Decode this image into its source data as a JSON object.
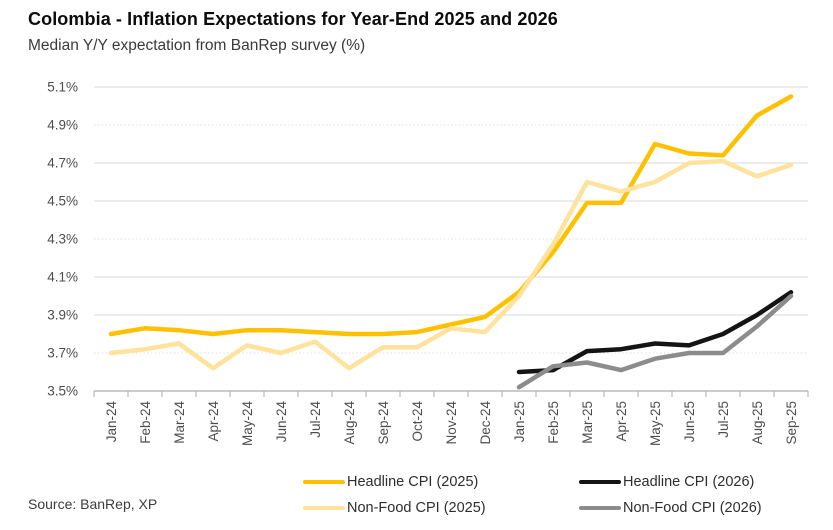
{
  "header": {
    "title": "Colombia - Inflation Expectations for Year-End 2025 and 2026",
    "subtitle": "Median Y/Y expectation from BanRep survey (%)"
  },
  "source": "Source: BanRep, XP",
  "chart_data": {
    "type": "line",
    "title": "Colombia - Inflation Expectations for Year-End 2025 and 2026",
    "subtitle": "Median Y/Y expectation from BanRep survey (%)",
    "x": [
      "Jan-24",
      "Feb-24",
      "Mar-24",
      "Apr-24",
      "May-24",
      "Jun-24",
      "Jul-24",
      "Aug-24",
      "Sep-24",
      "Oct-24",
      "Nov-24",
      "Dec-24",
      "Jan-25",
      "Feb-25",
      "Mar-25",
      "Apr-25",
      "May-25",
      "Jun-25",
      "Jul-25",
      "Aug-25",
      "Sep-25"
    ],
    "series": [
      {
        "name": "Headline CPI (2025)",
        "color": "#FFC000",
        "values": [
          3.8,
          3.83,
          3.82,
          3.8,
          3.82,
          3.82,
          3.81,
          3.8,
          3.8,
          3.81,
          3.85,
          3.89,
          4.02,
          4.23,
          4.49,
          4.49,
          4.8,
          4.75,
          4.74,
          4.95,
          5.05
        ]
      },
      {
        "name": "Headline CPI (2026)",
        "color": "#141414",
        "values": [
          null,
          null,
          null,
          null,
          null,
          null,
          null,
          null,
          null,
          null,
          null,
          null,
          3.6,
          3.61,
          3.71,
          3.72,
          3.75,
          3.74,
          3.8,
          3.9,
          4.02
        ]
      },
      {
        "name": "Non-Food CPI (2025)",
        "color": "#FFE29B",
        "values": [
          3.7,
          3.72,
          3.75,
          3.62,
          3.74,
          3.7,
          3.76,
          3.62,
          3.73,
          3.73,
          3.83,
          3.81,
          4.0,
          4.27,
          4.6,
          4.55,
          4.6,
          4.7,
          4.71,
          4.63,
          4.69
        ]
      },
      {
        "name": "Non-Food CPI (2026)",
        "color": "#8C8C8C",
        "values": [
          null,
          null,
          null,
          null,
          null,
          null,
          null,
          null,
          null,
          null,
          null,
          null,
          3.52,
          3.63,
          3.65,
          3.61,
          3.67,
          3.7,
          3.7,
          3.84,
          4.0
        ]
      }
    ],
    "ylim": [
      3.5,
      5.1
    ],
    "yticks": [
      3.5,
      3.7,
      3.9,
      4.1,
      4.3,
      4.5,
      4.7,
      4.9,
      5.1
    ],
    "ytick_labels": [
      "3.5%",
      "3.7%",
      "3.9%",
      "4.1%",
      "4.3%",
      "4.5%",
      "4.7%",
      "4.9%",
      "5.1%"
    ],
    "grid": "horizontal",
    "legend_position": "bottom"
  }
}
